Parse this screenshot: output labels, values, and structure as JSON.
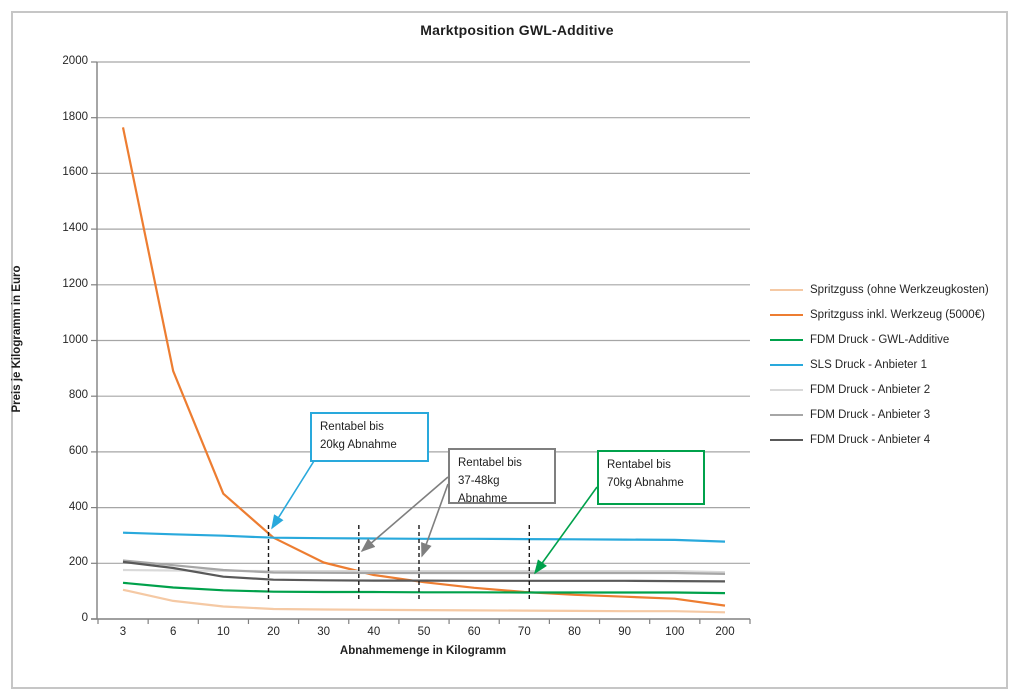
{
  "chart_data": {
    "type": "line",
    "title": "Marktposition GWL-Additive",
    "xlabel": "Abnahmemenge in Kilogramm",
    "ylabel": "Preis je Kilogramm in Euro",
    "categories": [
      3,
      6,
      10,
      20,
      30,
      40,
      50,
      60,
      70,
      80,
      90,
      100,
      200
    ],
    "ylim": [
      0,
      2000
    ],
    "ytick_step": 200,
    "grid": "horizontal",
    "legend_position": "right",
    "series": [
      {
        "name": "Spritzguss (ohne Werkzeugkosten)",
        "color": "#F5C9A4",
        "values": [
          105,
          65,
          45,
          36,
          34,
          33,
          32,
          31,
          30,
          29,
          28,
          28,
          24
        ]
      },
      {
        "name": "Spritzguss inkl. Werkzeug (5000€)",
        "color": "#ED7D31",
        "values": [
          1765,
          890,
          450,
          292,
          203,
          158,
          132,
          112,
          97,
          87,
          80,
          73,
          48
        ]
      },
      {
        "name": "FDM Druck -  GWL-Additive",
        "color": "#00A14B",
        "values": [
          130,
          113,
          103,
          98,
          97,
          97,
          96,
          96,
          95,
          95,
          95,
          95,
          93
        ]
      },
      {
        "name": "SLS Druck - Anbieter 1",
        "color": "#29A9DC",
        "values": [
          310,
          304,
          299,
          292,
          290,
          289,
          288,
          288,
          287,
          286,
          285,
          284,
          278
        ]
      },
      {
        "name": "FDM Druck - Anbieter 2",
        "color": "#D9D9D9",
        "values": [
          176,
          174,
          173,
          172,
          172,
          172,
          172,
          172,
          172,
          172,
          172,
          172,
          168
        ]
      },
      {
        "name": "FDM Druck - Anbieter 3",
        "color": "#A6A6A6",
        "values": [
          210,
          193,
          176,
          167,
          166,
          165,
          165,
          165,
          165,
          165,
          165,
          165,
          162
        ]
      },
      {
        "name": "FDM Druck - Anbieter 4",
        "color": "#595959",
        "values": [
          205,
          183,
          152,
          141,
          139,
          138,
          138,
          137,
          137,
          137,
          137,
          136,
          135
        ]
      }
    ],
    "annotations": [
      {
        "text": "Rentabel bis\n20kg Abnahme",
        "color": "#29A9DC",
        "refers_to_kg": "20"
      },
      {
        "text": "Rentabel bis\n37-48kg\nAbnahme",
        "color": "#7F7F7F",
        "refers_to_kg": "37-48"
      },
      {
        "text": "Rentabel bis\n70kg Abnahme",
        "color": "#00A14B",
        "refers_to_kg": "70"
      }
    ],
    "dashed_marker_lines_kg": [
      19,
      37,
      49,
      71
    ]
  }
}
